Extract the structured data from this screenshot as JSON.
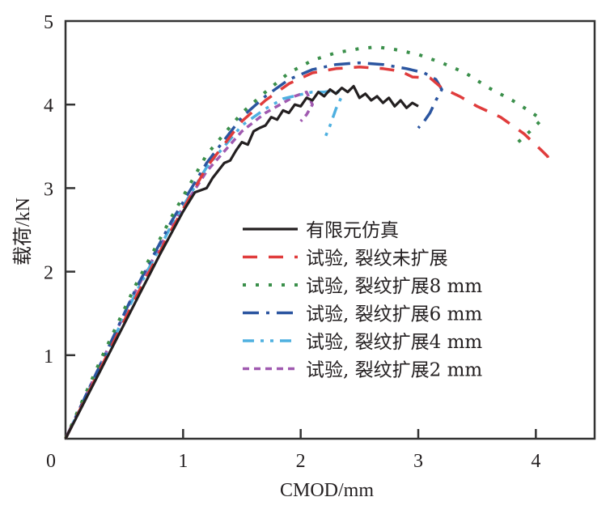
{
  "chart_data": {
    "type": "line",
    "title": "",
    "xlabel": "CMOD/mm",
    "ylabel": "载荷/kN",
    "xlim": [
      0,
      4.5
    ],
    "ylim": [
      0,
      5
    ],
    "xticks": [
      0,
      1,
      2,
      3,
      4
    ],
    "xtick_labels": [
      "0",
      "1",
      "2",
      "3",
      "4"
    ],
    "yticks": [
      1,
      2,
      3,
      4,
      5
    ],
    "ytick_labels": [
      "1",
      "2",
      "3",
      "4",
      "5"
    ],
    "grid": false,
    "legend_position": "center-right",
    "series": [
      {
        "name": "有限元仿真",
        "color": "#231f20",
        "style": "solid",
        "x": [
          0,
          0.2,
          0.4,
          0.6,
          0.8,
          1.0,
          1.1,
          1.2,
          1.25,
          1.35,
          1.4,
          1.45,
          1.5,
          1.55,
          1.6,
          1.65,
          1.7,
          1.75,
          1.8,
          1.85,
          1.9,
          1.95,
          2.0,
          2.05,
          2.1,
          2.15,
          2.2,
          2.25,
          2.3,
          2.35,
          2.4,
          2.45,
          2.5,
          2.55,
          2.6,
          2.65,
          2.7,
          2.75,
          2.8,
          2.85,
          2.9,
          2.95,
          3.0
        ],
        "y": [
          0,
          0.55,
          1.1,
          1.65,
          2.2,
          2.72,
          2.95,
          3.0,
          3.12,
          3.3,
          3.33,
          3.45,
          3.55,
          3.52,
          3.68,
          3.72,
          3.75,
          3.85,
          3.82,
          3.93,
          3.9,
          4.0,
          3.98,
          4.08,
          4.05,
          4.15,
          4.1,
          4.18,
          4.13,
          4.2,
          4.15,
          4.22,
          4.08,
          4.13,
          4.05,
          4.1,
          4.02,
          4.08,
          3.98,
          4.05,
          3.96,
          4.02,
          3.98
        ]
      },
      {
        "name": "试验, 裂纹未扩展",
        "color": "#e03c3c",
        "style": "dashed",
        "x": [
          0,
          0.3,
          0.6,
          0.9,
          1.2,
          1.5,
          1.7,
          1.9,
          2.1,
          2.3,
          2.5,
          2.7,
          2.85,
          2.95,
          3.1,
          3.2,
          3.35,
          3.5,
          3.7,
          3.9,
          4.05,
          4.1,
          4.12
        ],
        "y": [
          0,
          0.85,
          1.7,
          2.5,
          3.25,
          3.8,
          4.05,
          4.25,
          4.38,
          4.43,
          4.45,
          4.43,
          4.4,
          4.33,
          4.32,
          4.2,
          4.1,
          3.98,
          3.85,
          3.65,
          3.45,
          3.38,
          3.3
        ]
      },
      {
        "name": "试验, 裂纹扩展8 mm",
        "color": "#3a8f4a",
        "style": "dotted",
        "x": [
          0,
          0.3,
          0.6,
          0.9,
          1.2,
          1.5,
          1.7,
          1.9,
          2.1,
          2.3,
          2.5,
          2.65,
          2.8,
          3.0,
          3.2,
          3.4,
          3.6,
          3.8,
          3.95,
          4.05,
          3.95,
          3.85
        ],
        "y": [
          0,
          0.95,
          1.85,
          2.65,
          3.4,
          3.9,
          4.15,
          4.38,
          4.53,
          4.62,
          4.67,
          4.69,
          4.66,
          4.6,
          4.5,
          4.38,
          4.2,
          4.05,
          3.92,
          3.82,
          3.68,
          3.55
        ]
      },
      {
        "name": "试验, 裂纹扩展6 mm",
        "color": "#2b55a0",
        "style": "dashdot",
        "x": [
          0,
          0.3,
          0.6,
          0.9,
          1.2,
          1.5,
          1.7,
          1.9,
          2.1,
          2.3,
          2.5,
          2.7,
          2.9,
          3.05,
          3.15,
          3.2,
          3.15,
          3.1,
          3.05,
          3.0
        ],
        "y": [
          0,
          0.9,
          1.8,
          2.6,
          3.3,
          3.85,
          4.1,
          4.3,
          4.42,
          4.48,
          4.5,
          4.48,
          4.43,
          4.38,
          4.3,
          4.18,
          4.05,
          3.9,
          3.8,
          3.72
        ]
      },
      {
        "name": "试验, 裂纹扩展4 mm",
        "color": "#4fb0e0",
        "style": "dashdotdot",
        "x": [
          0,
          0.3,
          0.6,
          0.9,
          1.2,
          1.5,
          1.7,
          1.85,
          2.0,
          2.1,
          2.2,
          2.3,
          2.35,
          2.3,
          2.25,
          2.2
        ],
        "y": [
          0,
          0.88,
          1.75,
          2.55,
          3.25,
          3.75,
          3.95,
          4.07,
          4.12,
          4.15,
          4.15,
          4.17,
          4.1,
          3.95,
          3.75,
          3.58
        ]
      },
      {
        "name": "试验, 裂纹扩展2 mm",
        "color": "#a05ab0",
        "style": "shortdash",
        "x": [
          0,
          0.3,
          0.6,
          0.9,
          1.2,
          1.5,
          1.7,
          1.85,
          1.95,
          2.05,
          2.1,
          2.05,
          2.0
        ],
        "y": [
          0,
          0.9,
          1.78,
          2.55,
          3.2,
          3.68,
          3.9,
          4.02,
          4.1,
          4.15,
          4.0,
          3.88,
          3.8
        ]
      }
    ]
  }
}
